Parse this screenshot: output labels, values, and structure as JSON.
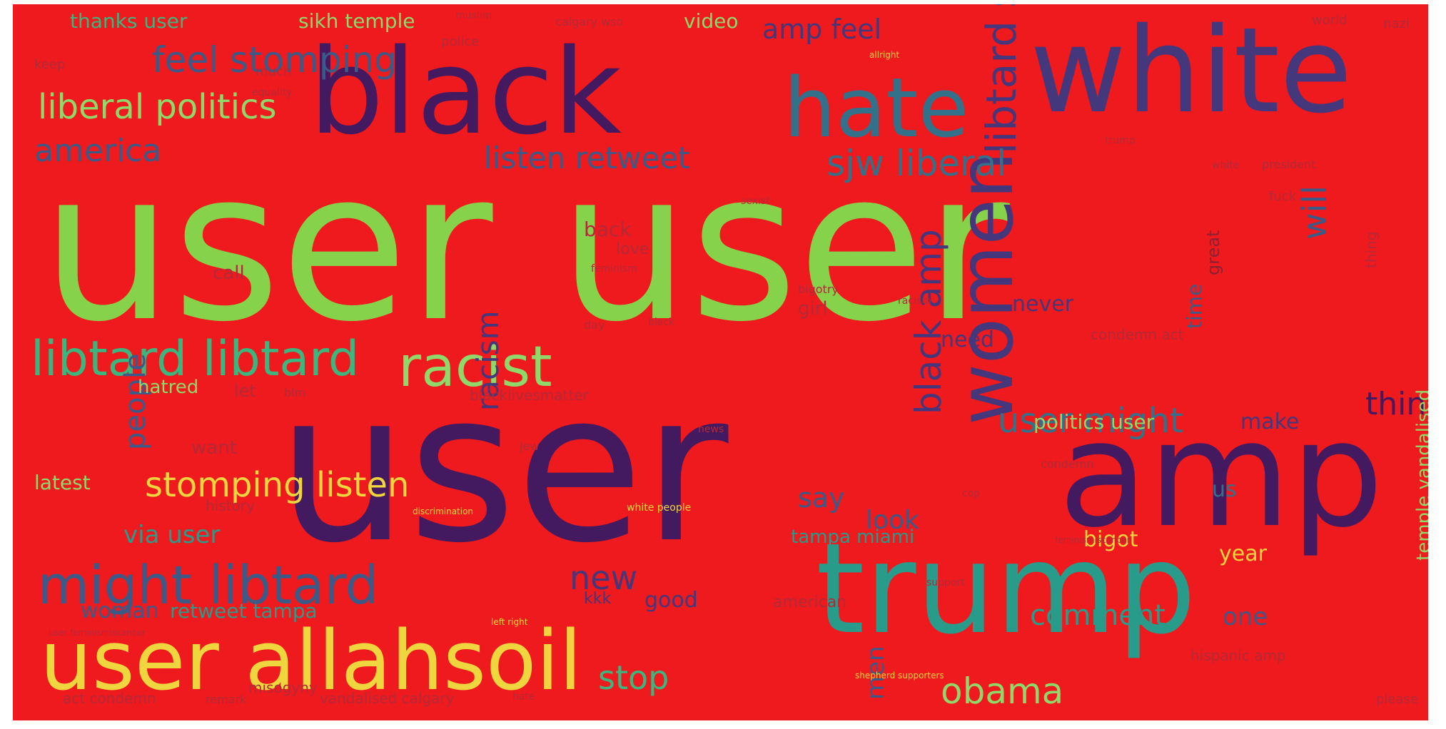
{
  "background_color": "#ee1a1d",
  "palette": {
    "green": "#86d24b",
    "dark_purple": "#43195f",
    "navy_purple": "#44377b",
    "slate_blue": "#3b5a88",
    "teal_blue": "#33718a",
    "teal": "#289b8a",
    "sea_green": "#3bb67f",
    "yellow": "#f0d63e",
    "light_green": "#8fd96b",
    "dark_red": "#8b2234",
    "muted_red": "#b22a38"
  },
  "words": [
    {
      "text": "user user",
      "color": "green"
    },
    {
      "text": "user",
      "color": "dark_purple"
    },
    {
      "text": "white",
      "color": "navy_purple"
    },
    {
      "text": "black",
      "color": "dark_purple"
    },
    {
      "text": "amp",
      "color": "dark_purple"
    },
    {
      "text": "trump",
      "color": "teal"
    },
    {
      "text": "user allahsoil",
      "color": "yellow"
    },
    {
      "text": "hate",
      "color": "teal_blue"
    },
    {
      "text": "women",
      "color": "navy_purple"
    },
    {
      "text": "racist",
      "color": "light_green"
    },
    {
      "text": "might libtard",
      "color": "slate_blue"
    },
    {
      "text": "libtard libtard",
      "color": "sea_green"
    },
    {
      "text": "libtard sjw",
      "color": "navy_purple"
    },
    {
      "text": "sjw liberal",
      "color": "teal_blue"
    },
    {
      "text": "liberal politics",
      "color": "light_green"
    },
    {
      "text": "america",
      "color": "slate_blue"
    },
    {
      "text": "amp feel",
      "color": "navy_purple"
    },
    {
      "text": "feel stomping",
      "color": "slate_blue"
    },
    {
      "text": "stomping listen",
      "color": "yellow"
    },
    {
      "text": "new",
      "color": "navy_purple"
    },
    {
      "text": "obama",
      "color": "light_green"
    },
    {
      "text": "user might",
      "color": "teal_blue"
    },
    {
      "text": "listen retweet",
      "color": "slate_blue"
    },
    {
      "text": "black amp",
      "color": "navy_purple"
    },
    {
      "text": "will",
      "color": "slate_blue"
    },
    {
      "text": "racism",
      "color": "navy_purple"
    },
    {
      "text": "people",
      "color": "slate_blue"
    },
    {
      "text": "say",
      "color": "slate_blue"
    },
    {
      "text": "look",
      "color": "slate_blue"
    },
    {
      "text": "stop",
      "color": "sea_green"
    },
    {
      "text": "think",
      "color": "dark_purple"
    },
    {
      "text": "comment",
      "color": "teal"
    },
    {
      "text": "us",
      "color": "teal_blue"
    },
    {
      "text": "via user",
      "color": "teal"
    },
    {
      "text": "year",
      "color": "yellow"
    },
    {
      "text": "one",
      "color": "slate_blue"
    },
    {
      "text": "need",
      "color": "navy_purple"
    },
    {
      "text": "never",
      "color": "navy_purple"
    },
    {
      "text": "bigot",
      "color": "yellow"
    },
    {
      "text": "woman",
      "color": "slate_blue"
    },
    {
      "text": "retweet tampa",
      "color": "teal"
    },
    {
      "text": "tampa miami",
      "color": "teal"
    },
    {
      "text": "politics user",
      "color": "light_green"
    },
    {
      "text": "make",
      "color": "navy_purple"
    },
    {
      "text": "latest",
      "color": "light_green"
    },
    {
      "text": "thanks user",
      "color": "sea_green"
    },
    {
      "text": "sikh temple",
      "color": "light_green"
    },
    {
      "text": "video",
      "color": "light_green"
    },
    {
      "text": "good",
      "color": "navy_purple"
    },
    {
      "text": "men",
      "color": "slate_blue"
    },
    {
      "text": "time",
      "color": "slate_blue"
    },
    {
      "text": "temple vandalised",
      "color": "light_green"
    },
    {
      "text": "call",
      "color": "muted_red"
    },
    {
      "text": "girl",
      "color": "muted_red"
    },
    {
      "text": "back",
      "color": "muted_red"
    },
    {
      "text": "love",
      "color": "muted_red"
    },
    {
      "text": "want",
      "color": "muted_red"
    },
    {
      "text": "let",
      "color": "muted_red"
    },
    {
      "text": "hatred",
      "color": "light_green"
    },
    {
      "text": "kkk",
      "color": "navy_purple"
    },
    {
      "text": "american",
      "color": "muted_red"
    },
    {
      "text": "misogyny",
      "color": "muted_red"
    },
    {
      "text": "vandalised calgary",
      "color": "muted_red"
    },
    {
      "text": "condemn act",
      "color": "muted_red"
    },
    {
      "text": "blacklivesmatter",
      "color": "muted_red"
    },
    {
      "text": "history",
      "color": "muted_red"
    },
    {
      "text": "great",
      "color": "dark_red"
    },
    {
      "text": "hispanic amp",
      "color": "muted_red"
    },
    {
      "text": "act condemn",
      "color": "muted_red"
    },
    {
      "text": "thing",
      "color": "muted_red"
    },
    {
      "text": "calgary wso",
      "color": "muted_red"
    },
    {
      "text": "president",
      "color": "muted_red"
    },
    {
      "text": "white people",
      "color": "yellow"
    },
    {
      "text": "condemn",
      "color": "muted_red"
    },
    {
      "text": "remark",
      "color": "muted_red"
    },
    {
      "text": "equality",
      "color": "muted_red"
    },
    {
      "text": "keep",
      "color": "muted_red"
    },
    {
      "text": "much",
      "color": "muted_red"
    },
    {
      "text": "police",
      "color": "muted_red"
    },
    {
      "text": "world",
      "color": "muted_red"
    },
    {
      "text": "nazi",
      "color": "muted_red"
    },
    {
      "text": "please",
      "color": "muted_red"
    },
    {
      "text": "day",
      "color": "muted_red"
    },
    {
      "text": "fuck",
      "color": "muted_red"
    },
    {
      "text": "left right",
      "color": "yellow"
    },
    {
      "text": "shepherd supporters",
      "color": "yellow"
    },
    {
      "text": "discrimination",
      "color": "yellow"
    },
    {
      "text": "allright",
      "color": "yellow"
    },
    {
      "text": "bigotry",
      "color": "muted_red"
    },
    {
      "text": "feminism",
      "color": "muted_red"
    },
    {
      "text": "sexist",
      "color": "muted_red"
    },
    {
      "text": "racism",
      "color": "muted_red"
    },
    {
      "text": "jew",
      "color": "muted_red"
    },
    {
      "text": "feminismiscancer",
      "color": "muted_red"
    },
    {
      "text": "user feminismiscancer",
      "color": "muted_red"
    },
    {
      "text": "muslim",
      "color": "muted_red"
    },
    {
      "text": "white",
      "color": "muted_red"
    },
    {
      "text": "support",
      "color": "muted_red"
    },
    {
      "text": "cop",
      "color": "muted_red"
    },
    {
      "text": "blm",
      "color": "muted_red"
    },
    {
      "text": "hate",
      "color": "muted_red"
    },
    {
      "text": "news",
      "color": "muted_red"
    },
    {
      "text": "trump",
      "color": "muted_red"
    },
    {
      "text": "black",
      "color": "muted_red"
    }
  ]
}
